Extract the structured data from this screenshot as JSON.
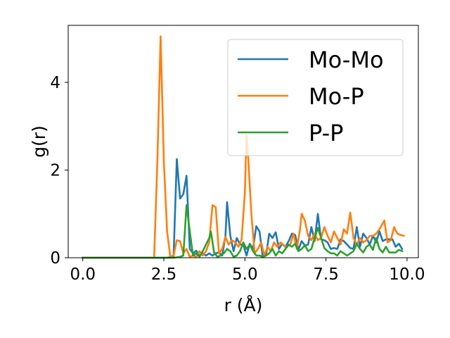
{
  "chart_data": {
    "type": "line",
    "xlabel": "r (Å)",
    "ylabel": "g(r)",
    "xlim": [
      -0.45,
      10.35
    ],
    "ylim": [
      0,
      5.3
    ],
    "xticks": [
      0.0,
      2.5,
      5.0,
      7.5,
      10.0
    ],
    "xtick_labels": [
      "0.0",
      "2.5",
      "5.0",
      "7.5",
      "10.0"
    ],
    "yticks": [
      0,
      2,
      4
    ],
    "ytick_labels": [
      "0",
      "2",
      "4"
    ],
    "legend_position": "upper-right",
    "series": [
      {
        "name": "Mo-Mo",
        "color": "#1f77b4",
        "points": [
          [
            0.0,
            0
          ],
          [
            2.2,
            0
          ],
          [
            2.6,
            0
          ],
          [
            2.8,
            0.03
          ],
          [
            2.9,
            2.25
          ],
          [
            3.0,
            1.35
          ],
          [
            3.1,
            1.45
          ],
          [
            3.2,
            1.87
          ],
          [
            3.3,
            0.2
          ],
          [
            3.4,
            0.1
          ],
          [
            3.5,
            0.16
          ],
          [
            3.6,
            0.05
          ],
          [
            3.7,
            0.1
          ],
          [
            3.8,
            0.05
          ],
          [
            3.9,
            0.1
          ],
          [
            4.0,
            0.05
          ],
          [
            4.1,
            0.1
          ],
          [
            4.2,
            0.12
          ],
          [
            4.3,
            0.05
          ],
          [
            4.4,
            0.5
          ],
          [
            4.45,
            1.27
          ],
          [
            4.55,
            0.5
          ],
          [
            4.65,
            0.15
          ],
          [
            4.75,
            0.45
          ],
          [
            4.85,
            0.3
          ],
          [
            4.95,
            0.3
          ],
          [
            5.05,
            0.05
          ],
          [
            5.15,
            0.32
          ],
          [
            5.25,
            0.2
          ],
          [
            5.35,
            0.72
          ],
          [
            5.45,
            0.6
          ],
          [
            5.55,
            0.02
          ],
          [
            5.65,
            0.05
          ],
          [
            5.75,
            0.55
          ],
          [
            5.85,
            0.45
          ],
          [
            5.95,
            0.58
          ],
          [
            6.05,
            0.2
          ],
          [
            6.15,
            0.32
          ],
          [
            6.25,
            0.25
          ],
          [
            6.35,
            0.38
          ],
          [
            6.45,
            0.55
          ],
          [
            6.55,
            0.52
          ],
          [
            6.65,
            0.18
          ],
          [
            6.75,
            0.38
          ],
          [
            6.85,
            0.28
          ],
          [
            6.95,
            0.3
          ],
          [
            7.05,
            0.7
          ],
          [
            7.15,
            0.38
          ],
          [
            7.25,
            1.0
          ],
          [
            7.35,
            0.42
          ],
          [
            7.45,
            0.4
          ],
          [
            7.55,
            0.35
          ],
          [
            7.65,
            0.2
          ],
          [
            7.75,
            0.22
          ],
          [
            7.85,
            0.2
          ],
          [
            7.95,
            0.42
          ],
          [
            8.05,
            0.38
          ],
          [
            8.15,
            0.3
          ],
          [
            8.25,
            0.22
          ],
          [
            8.35,
            0.2
          ],
          [
            8.45,
            0.7
          ],
          [
            8.55,
            0.25
          ],
          [
            8.65,
            0.55
          ],
          [
            8.75,
            0.45
          ],
          [
            8.85,
            0.3
          ],
          [
            8.95,
            0.5
          ],
          [
            9.05,
            0.35
          ],
          [
            9.15,
            0.6
          ],
          [
            9.25,
            0.38
          ],
          [
            9.35,
            0.42
          ],
          [
            9.45,
            0.42
          ],
          [
            9.55,
            0.42
          ],
          [
            9.65,
            0.25
          ],
          [
            9.75,
            0.32
          ],
          [
            9.85,
            0.2
          ]
        ]
      },
      {
        "name": "Mo-P",
        "color": "#ff7f0e",
        "points": [
          [
            0.0,
            0
          ],
          [
            2.2,
            0
          ],
          [
            2.3,
            2.2
          ],
          [
            2.4,
            5.05
          ],
          [
            2.5,
            2.2
          ],
          [
            2.6,
            0.6
          ],
          [
            2.7,
            0.02
          ],
          [
            2.8,
            0.05
          ],
          [
            2.9,
            0.4
          ],
          [
            3.0,
            0.38
          ],
          [
            3.1,
            0.1
          ],
          [
            3.2,
            0.2
          ],
          [
            3.3,
            0.02
          ],
          [
            3.4,
            0.05
          ],
          [
            3.5,
            0.02
          ],
          [
            3.6,
            0.15
          ],
          [
            3.7,
            0.05
          ],
          [
            3.8,
            0.15
          ],
          [
            3.9,
            0.35
          ],
          [
            4.0,
            1.2
          ],
          [
            4.1,
            1.15
          ],
          [
            4.2,
            0.1
          ],
          [
            4.3,
            0.2
          ],
          [
            4.4,
            0.48
          ],
          [
            4.5,
            0.3
          ],
          [
            4.6,
            0.4
          ],
          [
            4.7,
            0.35
          ],
          [
            4.8,
            0.25
          ],
          [
            4.9,
            0.42
          ],
          [
            5.0,
            1.5
          ],
          [
            5.05,
            2.8
          ],
          [
            5.1,
            2.3
          ],
          [
            5.2,
            1.0
          ],
          [
            5.3,
            0.1
          ],
          [
            5.4,
            0.2
          ],
          [
            5.5,
            0.35
          ],
          [
            5.6,
            0.05
          ],
          [
            5.7,
            0.25
          ],
          [
            5.8,
            0.15
          ],
          [
            5.9,
            0.35
          ],
          [
            6.0,
            0.25
          ],
          [
            6.1,
            0.35
          ],
          [
            6.2,
            0.28
          ],
          [
            6.3,
            0.25
          ],
          [
            6.4,
            0.3
          ],
          [
            6.5,
            0.55
          ],
          [
            6.6,
            0.2
          ],
          [
            6.7,
            0.65
          ],
          [
            6.75,
            1.0
          ],
          [
            6.85,
            0.85
          ],
          [
            6.95,
            0.5
          ],
          [
            7.05,
            0.4
          ],
          [
            7.15,
            0.55
          ],
          [
            7.25,
            0.4
          ],
          [
            7.35,
            0.45
          ],
          [
            7.45,
            0.7
          ],
          [
            7.55,
            0.5
          ],
          [
            7.65,
            0.35
          ],
          [
            7.75,
            0.6
          ],
          [
            7.85,
            0.45
          ],
          [
            7.95,
            0.3
          ],
          [
            8.05,
            0.65
          ],
          [
            8.15,
            0.55
          ],
          [
            8.25,
            1.03
          ],
          [
            8.35,
            0.45
          ],
          [
            8.45,
            0.3
          ],
          [
            8.55,
            0.45
          ],
          [
            8.65,
            0.35
          ],
          [
            8.75,
            0.4
          ],
          [
            8.85,
            0.5
          ],
          [
            8.95,
            0.5
          ],
          [
            9.05,
            0.55
          ],
          [
            9.15,
            0.65
          ],
          [
            9.25,
            0.78
          ],
          [
            9.3,
            0.85
          ],
          [
            9.4,
            0.35
          ],
          [
            9.5,
            0.4
          ],
          [
            9.6,
            0.7
          ],
          [
            9.7,
            0.55
          ],
          [
            9.8,
            0.52
          ],
          [
            9.9,
            0.5
          ]
        ]
      },
      {
        "name": "P-P",
        "color": "#2ca02c",
        "points": [
          [
            0.0,
            0
          ],
          [
            2.8,
            0
          ],
          [
            3.0,
            0.02
          ],
          [
            3.1,
            0.05
          ],
          [
            3.2,
            1.2
          ],
          [
            3.3,
            0.6
          ],
          [
            3.4,
            0.05
          ],
          [
            3.5,
            0.1
          ],
          [
            3.6,
            0.02
          ],
          [
            3.7,
            0.15
          ],
          [
            3.8,
            0.3
          ],
          [
            3.9,
            0.45
          ],
          [
            3.95,
            0.6
          ],
          [
            4.05,
            0.12
          ],
          [
            4.15,
            0.02
          ],
          [
            4.25,
            0.05
          ],
          [
            4.35,
            0.1
          ],
          [
            4.45,
            0.2
          ],
          [
            4.55,
            0.15
          ],
          [
            4.65,
            0.02
          ],
          [
            4.75,
            0.05
          ],
          [
            4.85,
            0.15
          ],
          [
            4.95,
            0.35
          ],
          [
            5.05,
            0.2
          ],
          [
            5.15,
            0.3
          ],
          [
            5.25,
            0.15
          ],
          [
            5.35,
            0.05
          ],
          [
            5.45,
            0.05
          ],
          [
            5.55,
            0.02
          ],
          [
            5.65,
            0.05
          ],
          [
            5.75,
            0.1
          ],
          [
            5.85,
            0.2
          ],
          [
            5.95,
            0.05
          ],
          [
            6.05,
            0.15
          ],
          [
            6.15,
            0.1
          ],
          [
            6.25,
            0.2
          ],
          [
            6.35,
            0.3
          ],
          [
            6.45,
            0.25
          ],
          [
            6.55,
            0.32
          ],
          [
            6.65,
            0.15
          ],
          [
            6.75,
            0.2
          ],
          [
            6.85,
            0.28
          ],
          [
            6.95,
            0.15
          ],
          [
            7.05,
            0.2
          ],
          [
            7.15,
            0.45
          ],
          [
            7.25,
            0.68
          ],
          [
            7.35,
            0.45
          ],
          [
            7.45,
            0.22
          ],
          [
            7.55,
            0.15
          ],
          [
            7.65,
            0.1
          ],
          [
            7.75,
            0.1
          ],
          [
            7.85,
            0.05
          ],
          [
            7.95,
            0.15
          ],
          [
            8.05,
            0.1
          ],
          [
            8.15,
            0.05
          ],
          [
            8.25,
            0.1
          ],
          [
            8.35,
            0.15
          ],
          [
            8.45,
            0.32
          ],
          [
            8.55,
            0.2
          ],
          [
            8.65,
            0.12
          ],
          [
            8.75,
            0.25
          ],
          [
            8.85,
            0.3
          ],
          [
            8.95,
            0.18
          ],
          [
            9.05,
            0.45
          ],
          [
            9.15,
            0.2
          ],
          [
            9.25,
            0.12
          ],
          [
            9.35,
            0.25
          ],
          [
            9.45,
            0.12
          ],
          [
            9.55,
            0.12
          ],
          [
            9.65,
            0.12
          ],
          [
            9.75,
            0.18
          ],
          [
            9.85,
            0.15
          ]
        ]
      }
    ]
  }
}
